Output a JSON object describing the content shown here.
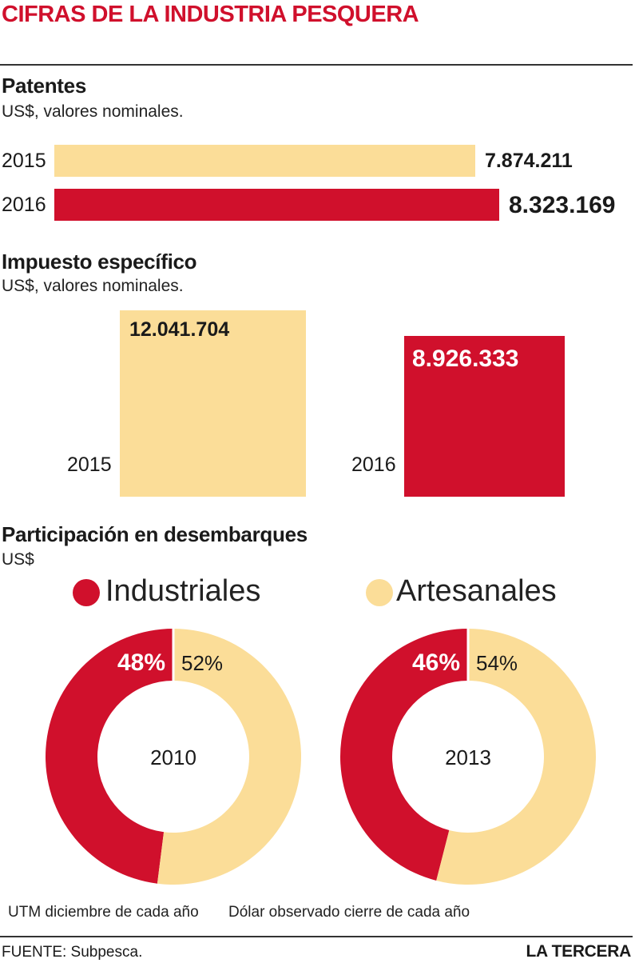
{
  "header": {
    "title": "CIFRAS DE LA INDUSTRIA PESQUERA"
  },
  "colors": {
    "accent": "#d0102c",
    "light": "#fbdd98"
  },
  "chart_data": [
    {
      "type": "bar",
      "title": "Patentes",
      "subtitle": "US$, valores nominales.",
      "categories": [
        "2015",
        "2016"
      ],
      "values": [
        7874211,
        8323169
      ],
      "value_labels": [
        "7.874.211",
        "8.323.169"
      ]
    },
    {
      "type": "bar",
      "title": "Impuesto específico",
      "subtitle": "US$, valores nominales.",
      "categories": [
        "2015",
        "2016"
      ],
      "values": [
        12041704,
        8926333
      ],
      "value_labels": [
        "12.041.704",
        "8.926.333"
      ]
    },
    {
      "type": "pie",
      "title": "Participación en desembarques",
      "subtitle": "US$",
      "legend": [
        "Industriales",
        "Artesanales"
      ],
      "donuts": [
        {
          "center_label": "2010",
          "values": [
            48,
            52
          ],
          "value_labels": [
            "48%",
            "52%"
          ]
        },
        {
          "center_label": "2013",
          "values": [
            46,
            54
          ],
          "value_labels": [
            "46%",
            "54%"
          ]
        }
      ]
    }
  ],
  "notes": {
    "left": "UTM diciembre de cada año",
    "right": "Dólar observado cierre de cada año"
  },
  "footer": {
    "source": "FUENTE: Subpesca.",
    "brand": "LA TERCERA"
  }
}
